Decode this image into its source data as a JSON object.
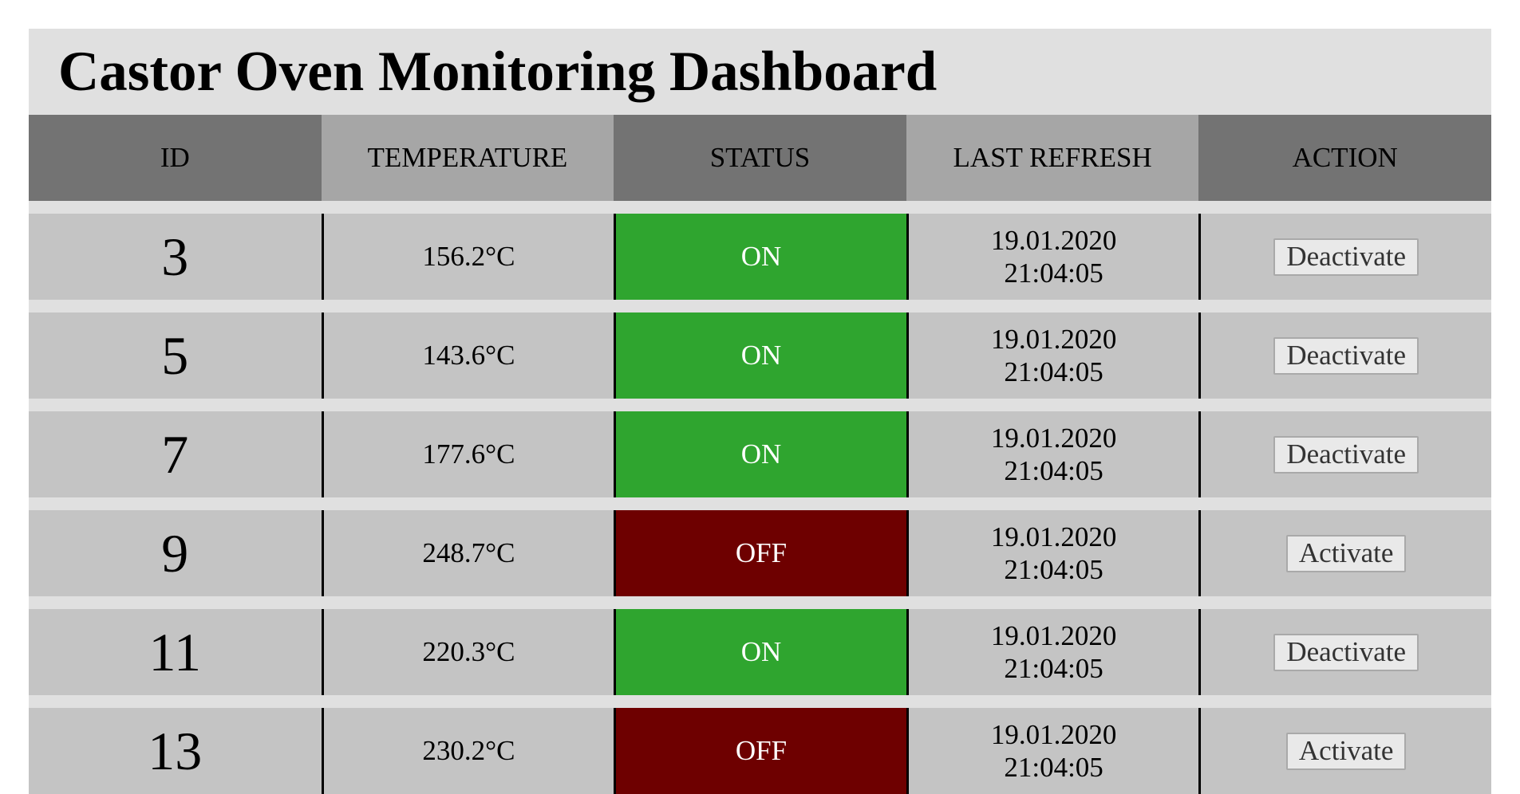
{
  "app": {
    "title": "Castor Oven Monitoring Dashboard"
  },
  "table": {
    "headers": {
      "id": "ID",
      "temperature": "TEMPERATURE",
      "status": "STATUS",
      "last_refresh": "LAST REFRESH",
      "action": "ACTION"
    },
    "rows": [
      {
        "id": "3",
        "temperature": "156.2°C",
        "status": "ON",
        "status_state": "on",
        "date": "19.01.2020",
        "time": "21:04:05",
        "action": "Deactivate"
      },
      {
        "id": "5",
        "temperature": "143.6°C",
        "status": "ON",
        "status_state": "on",
        "date": "19.01.2020",
        "time": "21:04:05",
        "action": "Deactivate"
      },
      {
        "id": "7",
        "temperature": "177.6°C",
        "status": "ON",
        "status_state": "on",
        "date": "19.01.2020",
        "time": "21:04:05",
        "action": "Deactivate"
      },
      {
        "id": "9",
        "temperature": "248.7°C",
        "status": "OFF",
        "status_state": "off",
        "date": "19.01.2020",
        "time": "21:04:05",
        "action": "Activate"
      },
      {
        "id": "11",
        "temperature": "220.3°C",
        "status": "ON",
        "status_state": "on",
        "date": "19.01.2020",
        "time": "21:04:05",
        "action": "Deactivate"
      },
      {
        "id": "13",
        "temperature": "230.2°C",
        "status": "OFF",
        "status_state": "off",
        "date": "19.01.2020",
        "time": "21:04:05",
        "action": "Activate"
      }
    ]
  },
  "colors": {
    "status_on": "#2fa52f",
    "status_off": "#6e0000",
    "header_dark": "#737373",
    "header_light": "#a6a6a6",
    "row_background": "#c4c4c4"
  }
}
